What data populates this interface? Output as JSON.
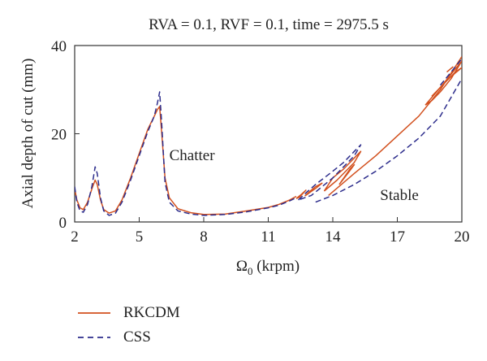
{
  "chart_data": {
    "type": "line",
    "title": "RVA = 0.1, RVF = 0.1, time = 2975.5 s",
    "xlabel_symbol": "Ω",
    "xlabel_subscript": "0",
    "xlabel_rest": " (krpm)",
    "ylabel": "Axial depth of cut (mm)",
    "xlim": [
      2,
      20
    ],
    "ylim": [
      0,
      40
    ],
    "xticks": [
      2,
      5,
      8,
      11,
      14,
      17,
      20
    ],
    "yticks": [
      0,
      20,
      40
    ],
    "grid": false,
    "legend_position": "bottom-left, below plot",
    "annotations": [
      {
        "text": "Chatter",
        "x": 6.4,
        "y": 14
      },
      {
        "text": "Stable",
        "x": 16.2,
        "y": 5
      }
    ],
    "series": [
      {
        "name": "RKCDM",
        "color": "#d2501e",
        "dash": "solid",
        "segments": [
          [
            [
              2.0,
              7.5
            ],
            [
              2.1,
              5.0
            ],
            [
              2.25,
              3.2
            ],
            [
              2.4,
              2.8
            ],
            [
              2.6,
              4.5
            ],
            [
              2.8,
              7.5
            ],
            [
              2.95,
              9.5
            ],
            [
              3.05,
              8.5
            ],
            [
              3.2,
              5.0
            ],
            [
              3.35,
              2.8
            ],
            [
              3.6,
              2.0
            ],
            [
              3.9,
              2.5
            ],
            [
              4.2,
              5.0
            ],
            [
              4.6,
              10.0
            ],
            [
              5.0,
              15.5
            ],
            [
              5.4,
              21.0
            ],
            [
              5.7,
              24.0
            ],
            [
              5.85,
              25.5
            ],
            [
              5.95,
              26.2
            ],
            [
              6.05,
              20.0
            ],
            [
              6.2,
              10.0
            ],
            [
              6.4,
              5.5
            ],
            [
              6.8,
              3.0
            ],
            [
              7.4,
              2.1
            ],
            [
              8.0,
              1.7
            ],
            [
              9.0,
              1.8
            ],
            [
              10.0,
              2.5
            ],
            [
              11.0,
              3.3
            ],
            [
              11.5,
              4.0
            ],
            [
              12.0,
              5.0
            ],
            [
              12.3,
              5.8
            ]
          ],
          [
            [
              12.3,
              5.3
            ],
            [
              12.55,
              6.3
            ],
            [
              12.75,
              7.2
            ],
            [
              12.45,
              5.6
            ],
            [
              12.3,
              5.3
            ]
          ],
          [
            [
              12.7,
              5.9
            ],
            [
              13.2,
              7.6
            ],
            [
              13.5,
              8.8
            ],
            [
              13.2,
              8.0
            ],
            [
              12.9,
              6.8
            ],
            [
              12.7,
              5.9
            ]
          ],
          [
            [
              13.6,
              7.0
            ],
            [
              14.2,
              9.5
            ],
            [
              14.6,
              11.5
            ],
            [
              15.0,
              13.5
            ],
            [
              15.3,
              16.0
            ],
            [
              15.0,
              14.5
            ],
            [
              14.5,
              12.0
            ],
            [
              14.0,
              10.0
            ],
            [
              13.6,
              7.0
            ]
          ],
          [
            [
              14.3,
              8.5
            ],
            [
              14.8,
              12.0
            ],
            [
              15.0,
              13.0
            ],
            [
              14.7,
              11.0
            ],
            [
              14.3,
              8.5
            ]
          ],
          [
            [
              13.8,
              6.0
            ],
            [
              15.0,
              11.0
            ],
            [
              16.0,
              15.0
            ],
            [
              17.0,
              19.5
            ],
            [
              18.0,
              24.0
            ],
            [
              19.0,
              30.0
            ],
            [
              20.0,
              37.5
            ]
          ],
          [
            [
              18.3,
              26.5
            ],
            [
              19.0,
              30.5
            ],
            [
              19.5,
              33.5
            ],
            [
              20.0,
              36.5
            ],
            [
              19.5,
              32.5
            ],
            [
              19.0,
              29.5
            ],
            [
              18.6,
              27.5
            ],
            [
              18.3,
              26.5
            ]
          ],
          [
            [
              18.6,
              28.5
            ],
            [
              19.2,
              31.5
            ],
            [
              19.7,
              34.0
            ],
            [
              20.0,
              35.0
            ],
            [
              19.5,
              33.0
            ],
            [
              19.0,
              30.5
            ],
            [
              18.6,
              28.5
            ]
          ],
          [
            [
              19.3,
              34.0
            ],
            [
              19.6,
              35.2
            ]
          ]
        ]
      },
      {
        "name": "CSS",
        "color": "#2d2d8c",
        "dash": "dashed",
        "segments": [
          [
            [
              2.0,
              8.0
            ],
            [
              2.1,
              4.5
            ],
            [
              2.25,
              2.5
            ],
            [
              2.4,
              2.2
            ],
            [
              2.6,
              4.0
            ],
            [
              2.8,
              8.0
            ],
            [
              2.95,
              12.5
            ],
            [
              3.05,
              11.0
            ],
            [
              3.2,
              5.5
            ],
            [
              3.35,
              2.5
            ],
            [
              3.6,
              1.5
            ],
            [
              3.9,
              2.0
            ],
            [
              4.2,
              4.5
            ],
            [
              4.6,
              9.5
            ],
            [
              5.0,
              15.0
            ],
            [
              5.4,
              20.5
            ],
            [
              5.7,
              24.0
            ],
            [
              5.85,
              27.0
            ],
            [
              5.95,
              29.5
            ],
            [
              6.05,
              22.0
            ],
            [
              6.2,
              9.0
            ],
            [
              6.4,
              4.5
            ],
            [
              6.8,
              2.5
            ],
            [
              7.4,
              1.8
            ],
            [
              8.0,
              1.5
            ],
            [
              9.0,
              1.7
            ],
            [
              10.0,
              2.3
            ],
            [
              11.0,
              3.2
            ],
            [
              11.5,
              3.8
            ],
            [
              12.0,
              4.8
            ],
            [
              12.3,
              5.5
            ]
          ],
          [
            [
              12.4,
              5.0
            ],
            [
              12.8,
              6.8
            ],
            [
              13.2,
              8.5
            ],
            [
              13.6,
              10.0
            ],
            [
              14.0,
              11.5
            ],
            [
              14.5,
              13.5
            ],
            [
              15.0,
              16.0
            ],
            [
              15.3,
              17.5
            ],
            [
              15.0,
              15.0
            ],
            [
              14.5,
              12.5
            ],
            [
              14.0,
              10.0
            ],
            [
              13.5,
              8.0
            ],
            [
              13.0,
              6.0
            ],
            [
              12.4,
              5.0
            ]
          ],
          [
            [
              13.2,
              4.5
            ],
            [
              14.0,
              6.0
            ],
            [
              15.0,
              8.5
            ],
            [
              16.0,
              11.5
            ],
            [
              17.0,
              15.0
            ],
            [
              18.0,
              19.0
            ],
            [
              19.0,
              24.0
            ],
            [
              20.0,
              32.5
            ]
          ],
          [
            [
              19.0,
              31.0
            ],
            [
              19.5,
              34.0
            ],
            [
              20.0,
              37.0
            ]
          ]
        ]
      }
    ]
  }
}
